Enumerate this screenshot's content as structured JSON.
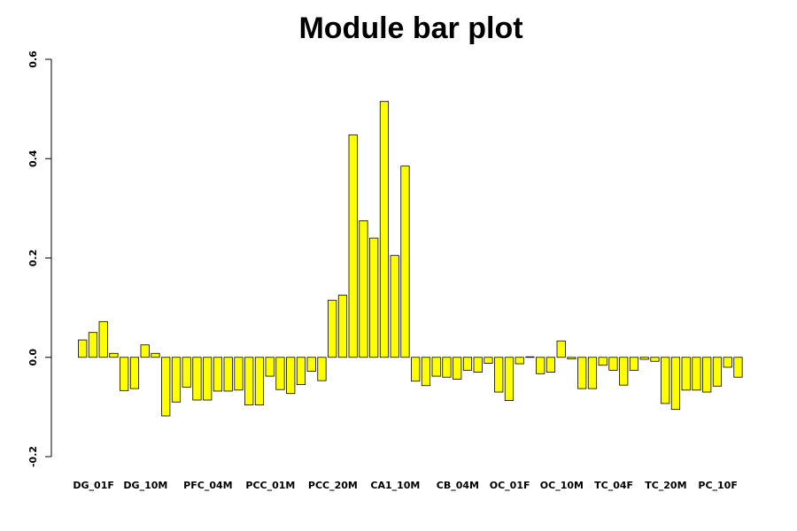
{
  "chart_data": {
    "type": "bar",
    "title": "Module bar plot",
    "xlabel": "",
    "ylabel": "",
    "ylim": [
      -0.2,
      0.6
    ],
    "yticks": [
      -0.2,
      0.0,
      0.2,
      0.4,
      0.6
    ],
    "ytick_labels": [
      "-0.2",
      "0.0",
      "0.2",
      "0.4",
      "0.6"
    ],
    "bar_fill": "#ffff00",
    "bar_stroke": "#000000",
    "grid": false,
    "group_labels": [
      "DG_01F",
      "DG_10M",
      "PFC_04M",
      "PCC_01M",
      "PCC_20M",
      "CA1_10M",
      "CB_04M",
      "OC_01F",
      "OC_10M",
      "TC_04F",
      "TC_20M",
      "PC_10F"
    ],
    "group_label_bar_index": [
      1,
      6,
      12,
      18,
      24,
      30,
      36,
      41,
      46,
      51,
      56,
      61
    ],
    "values": [
      0.035,
      0.05,
      0.072,
      0.008,
      -0.067,
      -0.063,
      0.025,
      0.008,
      -0.118,
      -0.09,
      -0.06,
      -0.086,
      -0.086,
      -0.068,
      -0.068,
      -0.066,
      -0.096,
      -0.096,
      -0.038,
      -0.065,
      -0.073,
      -0.055,
      -0.028,
      -0.047,
      0.115,
      0.125,
      0.448,
      0.275,
      0.24,
      0.515,
      0.205,
      0.385,
      -0.048,
      -0.057,
      -0.038,
      -0.04,
      -0.044,
      -0.026,
      -0.03,
      -0.012,
      -0.07,
      -0.087,
      -0.013,
      0.001,
      -0.033,
      -0.03,
      0.033,
      -0.003,
      -0.063,
      -0.063,
      -0.016,
      -0.026,
      -0.056,
      -0.026,
      -0.004,
      -0.008,
      -0.093,
      -0.105,
      -0.066,
      -0.066,
      -0.07,
      -0.058,
      -0.02,
      -0.04
    ]
  }
}
